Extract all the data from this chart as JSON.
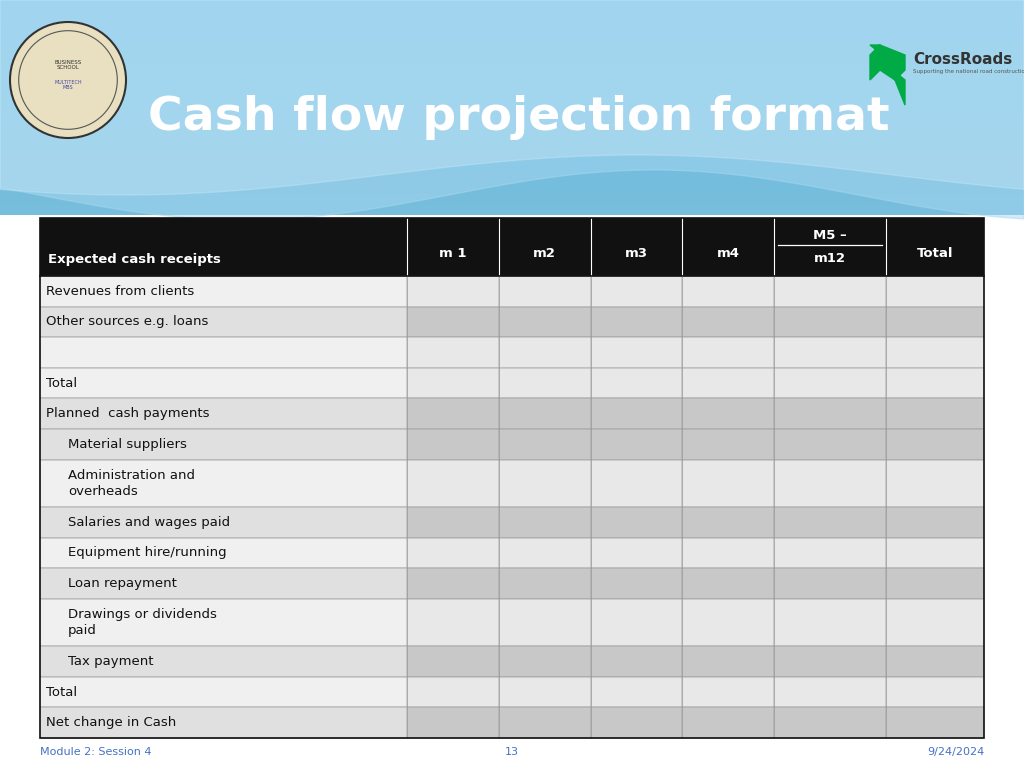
{
  "title": "Cash flow projection format",
  "title_color": "#FFFFFF",
  "title_fontsize": 34,
  "header_bg": "#111111",
  "header_text_color": "#FFFFFF",
  "rows": [
    {
      "label": "Revenues from clients",
      "indent": false,
      "shade": "white"
    },
    {
      "label": "Other sources e.g. loans",
      "indent": false,
      "shade": "light"
    },
    {
      "label": "",
      "indent": false,
      "shade": "white"
    },
    {
      "label": "Total",
      "indent": false,
      "shade": "white"
    },
    {
      "label": "Planned  cash payments",
      "indent": false,
      "shade": "light"
    },
    {
      "label": "Material suppliers",
      "indent": true,
      "shade": "light"
    },
    {
      "label": "Administration and\noverheads",
      "indent": true,
      "shade": "white"
    },
    {
      "label": "Salaries and wages paid",
      "indent": true,
      "shade": "light"
    },
    {
      "label": "Equipment hire/running",
      "indent": true,
      "shade": "white"
    },
    {
      "label": "Loan repayment",
      "indent": true,
      "shade": "light"
    },
    {
      "label": "Drawings or dividends\npaid",
      "indent": true,
      "shade": "white"
    },
    {
      "label": "Tax payment",
      "indent": true,
      "shade": "light"
    },
    {
      "label": "Total",
      "indent": false,
      "shade": "white"
    },
    {
      "label": "Net change in Cash",
      "indent": false,
      "shade": "light"
    }
  ],
  "col_widths_ratios": [
    2.8,
    0.7,
    0.7,
    0.7,
    0.7,
    0.85,
    0.75
  ],
  "shade_light": "#C8C8C8",
  "shade_white": "#E8E8E8",
  "footer_left": "Module 2: Session 4",
  "footer_center": "13",
  "footer_right": "9/24/2024",
  "footer_color": "#4472C4",
  "bg_blue_top": "#87CEEB",
  "bg_blue_mid": "#55AADD",
  "bg_blue_dark": "#3399CC",
  "wave1_color": "#FFFFFF",
  "wave2_color": "#AAD8F0"
}
